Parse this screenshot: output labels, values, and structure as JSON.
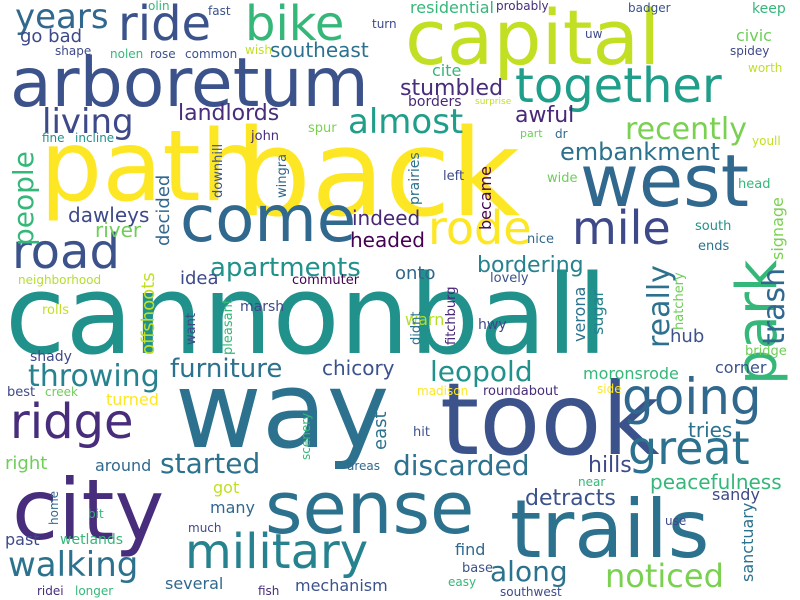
{
  "words": [
    {
      "id": "w0",
      "text": "cannonball",
      "color": "#21918c"
    },
    {
      "id": "w1",
      "text": "path",
      "color": "#fde725"
    },
    {
      "id": "w2",
      "text": "back",
      "color": "#fde725"
    },
    {
      "id": "w3",
      "text": "way",
      "color": "#2c728e"
    },
    {
      "id": "w4",
      "text": "took",
      "color": "#3b528b"
    },
    {
      "id": "w5",
      "text": "capital",
      "color": "#c2df23"
    },
    {
      "id": "w6",
      "text": "city",
      "color": "#472d7b"
    },
    {
      "id": "w7",
      "text": "sense",
      "color": "#2c728e"
    },
    {
      "id": "w8",
      "text": "arboretum",
      "color": "#3b528b"
    },
    {
      "id": "w9",
      "text": "west",
      "color": "#31688e"
    },
    {
      "id": "w10",
      "text": "come",
      "color": "#31688e"
    },
    {
      "id": "w11",
      "text": "trails",
      "color": "#2c728e"
    },
    {
      "id": "w12",
      "text": "park",
      "color": "#35b779"
    },
    {
      "id": "w13",
      "text": "together",
      "color": "#1f9e89"
    },
    {
      "id": "w14",
      "text": "ride",
      "color": "#3b528b"
    },
    {
      "id": "w15",
      "text": "bike",
      "color": "#35b779"
    },
    {
      "id": "w16",
      "text": "military",
      "color": "#26828e"
    },
    {
      "id": "w17",
      "text": "going",
      "color": "#31688e"
    },
    {
      "id": "w18",
      "text": "great",
      "color": "#2c728e"
    },
    {
      "id": "w19",
      "text": "ridge",
      "color": "#472d7b"
    },
    {
      "id": "w20",
      "text": "road",
      "color": "#3b528b"
    },
    {
      "id": "w21",
      "text": "rode",
      "color": "#fde725"
    },
    {
      "id": "w22",
      "text": "mile",
      "color": "#3e4989"
    },
    {
      "id": "w23",
      "text": "walking",
      "color": "#2c728e"
    },
    {
      "id": "w24",
      "text": "noticed",
      "color": "#7ad151"
    },
    {
      "id": "w25",
      "text": "discarded",
      "color": "#2c728e"
    },
    {
      "id": "w26",
      "text": "started",
      "color": "#2c728e"
    },
    {
      "id": "w27",
      "text": "recently",
      "color": "#7ad151"
    },
    {
      "id": "w28",
      "text": "almost",
      "color": "#1f9e89"
    },
    {
      "id": "w29",
      "text": "living",
      "color": "#3e4989"
    },
    {
      "id": "w30",
      "text": "years",
      "color": "#31688e"
    },
    {
      "id": "w31",
      "text": "furniture",
      "color": "#2c728e"
    },
    {
      "id": "w32",
      "text": "throwing",
      "color": "#26828e"
    },
    {
      "id": "w33",
      "text": "apartments",
      "color": "#21918c"
    },
    {
      "id": "w34",
      "text": "leopold",
      "color": "#21918c"
    },
    {
      "id": "w35",
      "text": "embankment",
      "color": "#2c728e"
    },
    {
      "id": "w36",
      "text": "along",
      "color": "#2c728e"
    },
    {
      "id": "w37",
      "text": "trash",
      "color": "#31688e"
    },
    {
      "id": "w38",
      "text": "people",
      "color": "#35b779"
    },
    {
      "id": "w39",
      "text": "really",
      "color": "#2c728e"
    },
    {
      "id": "w40",
      "text": "bordering",
      "color": "#26828e"
    },
    {
      "id": "w41",
      "text": "peacefulness",
      "color": "#35b779"
    },
    {
      "id": "w42",
      "text": "detracts",
      "color": "#3b528b"
    },
    {
      "id": "w43",
      "text": "tries",
      "color": "#2c728e"
    },
    {
      "id": "w44",
      "text": "hills",
      "color": "#3e4989"
    },
    {
      "id": "w45",
      "text": "awful",
      "color": "#482878"
    },
    {
      "id": "w46",
      "text": "stumbled",
      "color": "#472d7b"
    },
    {
      "id": "w47",
      "text": "landlords",
      "color": "#472d7b"
    },
    {
      "id": "w48",
      "text": "southeast",
      "color": "#2c728e"
    },
    {
      "id": "w49",
      "text": "residential",
      "color": "#35b779"
    },
    {
      "id": "w50",
      "text": "go bad",
      "color": "#3e4989"
    },
    {
      "id": "w51",
      "text": "moronsrode",
      "color": "#35b779"
    },
    {
      "id": "w52",
      "text": "chicory",
      "color": "#3b528b"
    },
    {
      "id": "w53",
      "text": "indeed",
      "color": "#482878"
    },
    {
      "id": "w54",
      "text": "headed",
      "color": "#440154"
    },
    {
      "id": "w55",
      "text": "decided",
      "color": "#31688e"
    },
    {
      "id": "w56",
      "text": "dawleys",
      "color": "#3e4989"
    },
    {
      "id": "w57",
      "text": "river",
      "color": "#6ece58"
    },
    {
      "id": "w58",
      "text": "idea",
      "color": "#3e4989"
    },
    {
      "id": "w59",
      "text": "onto",
      "color": "#31688e"
    },
    {
      "id": "w60",
      "text": "became",
      "color": "#440154"
    },
    {
      "id": "w61",
      "text": "offshoots",
      "color": "#c2df23"
    },
    {
      "id": "w62",
      "text": "turned",
      "color": "#fde725"
    },
    {
      "id": "w63",
      "text": "around",
      "color": "#31688e"
    },
    {
      "id": "w64",
      "text": "right",
      "color": "#6ece58"
    },
    {
      "id": "w65",
      "text": "east",
      "color": "#2c728e"
    },
    {
      "id": "w66",
      "text": "several",
      "color": "#31688e"
    },
    {
      "id": "w67",
      "text": "mechanism",
      "color": "#3b528b"
    },
    {
      "id": "w68",
      "text": "past",
      "color": "#3e4989"
    },
    {
      "id": "w69",
      "text": "wetlands",
      "color": "#35b779"
    },
    {
      "id": "w70",
      "text": "many",
      "color": "#31688e"
    },
    {
      "id": "w71",
      "text": "got",
      "color": "#c2df23"
    },
    {
      "id": "w72",
      "text": "find",
      "color": "#31688e"
    },
    {
      "id": "w73",
      "text": "sandy",
      "color": "#3e4989"
    },
    {
      "id": "w74",
      "text": "corner",
      "color": "#3b528b"
    },
    {
      "id": "w75",
      "text": "hub",
      "color": "#3b528b"
    },
    {
      "id": "w76",
      "text": "sugar",
      "color": "#26828e"
    },
    {
      "id": "w77",
      "text": "verona",
      "color": "#2c728e"
    },
    {
      "id": "w78",
      "text": "sanctuary",
      "color": "#2c728e"
    },
    {
      "id": "w79",
      "text": "signage",
      "color": "#7ad151"
    },
    {
      "id": "w80",
      "text": "cite",
      "color": "#35b779"
    },
    {
      "id": "w81",
      "text": "borders",
      "color": "#482878"
    },
    {
      "id": "w82",
      "text": "warn",
      "color": "#b5de2b"
    },
    {
      "id": "w83",
      "text": "marsh",
      "color": "#3e4989"
    },
    {
      "id": "w84",
      "text": "shady",
      "color": "#3e4989"
    },
    {
      "id": "w85",
      "text": "rolls",
      "color": "#c2df23"
    },
    {
      "id": "w86",
      "text": "commuter",
      "color": "#440154"
    },
    {
      "id": "w87",
      "text": "neighborhood",
      "color": "#b5de2b"
    },
    {
      "id": "w88",
      "text": "pleasant",
      "color": "#35b779"
    },
    {
      "id": "w89",
      "text": "want",
      "color": "#3e4989"
    },
    {
      "id": "w90",
      "text": "downhill",
      "color": "#3b528b"
    },
    {
      "id": "w91",
      "text": "wingra",
      "color": "#31688e"
    },
    {
      "id": "w92",
      "text": "john",
      "color": "#472d7b"
    },
    {
      "id": "w93",
      "text": "spur",
      "color": "#7ad151"
    },
    {
      "id": "w94",
      "text": "fine",
      "color": "#21918c"
    },
    {
      "id": "w95",
      "text": "incline",
      "color": "#21918c"
    },
    {
      "id": "w96",
      "text": "prairies",
      "color": "#2c728e"
    },
    {
      "id": "w97",
      "text": "left",
      "color": "#3e4989"
    },
    {
      "id": "w98",
      "text": "wide",
      "color": "#6ece58"
    },
    {
      "id": "w99",
      "text": "head",
      "color": "#35b779"
    },
    {
      "id": "w100",
      "text": "south",
      "color": "#21918c"
    },
    {
      "id": "w101",
      "text": "ends",
      "color": "#2c728e"
    },
    {
      "id": "w102",
      "text": "hatchery",
      "color": "#6ece58"
    },
    {
      "id": "w103",
      "text": "bridge",
      "color": "#6ece58"
    },
    {
      "id": "w104",
      "text": "nice",
      "color": "#31688e"
    },
    {
      "id": "w105",
      "text": "lovely",
      "color": "#3b528b"
    },
    {
      "id": "w106",
      "text": "hwy",
      "color": "#3e4989"
    },
    {
      "id": "w107",
      "text": "didnt",
      "color": "#2c728e"
    },
    {
      "id": "w108",
      "text": "fitchburg",
      "color": "#482878"
    },
    {
      "id": "w109",
      "text": "madison",
      "color": "#fde725"
    },
    {
      "id": "w110",
      "text": "roundabout",
      "color": "#472d7b"
    },
    {
      "id": "w111",
      "text": "side",
      "color": "#fde725"
    },
    {
      "id": "w112",
      "text": "best",
      "color": "#3e4989"
    },
    {
      "id": "w113",
      "text": "creek",
      "color": "#6ece58"
    },
    {
      "id": "w114",
      "text": "scenery",
      "color": "#35b779"
    },
    {
      "id": "w115",
      "text": "areas",
      "color": "#31688e"
    },
    {
      "id": "w116",
      "text": "hit",
      "color": "#3b528b"
    },
    {
      "id": "w117",
      "text": "near",
      "color": "#35b779"
    },
    {
      "id": "w118",
      "text": "base",
      "color": "#3b528b"
    },
    {
      "id": "w119",
      "text": "easy",
      "color": "#35b779"
    },
    {
      "id": "w120",
      "text": "southwest",
      "color": "#3e4989"
    },
    {
      "id": "w121",
      "text": "use",
      "color": "#3e4989"
    },
    {
      "id": "w122",
      "text": "fish",
      "color": "#472d7b"
    },
    {
      "id": "w123",
      "text": "longer",
      "color": "#35b779"
    },
    {
      "id": "w124",
      "text": "ridei",
      "color": "#472d7b"
    },
    {
      "id": "w125",
      "text": "much",
      "color": "#3e4989"
    },
    {
      "id": "w126",
      "text": "bit",
      "color": "#35b779"
    },
    {
      "id": "w127",
      "text": "home",
      "color": "#31688e"
    },
    {
      "id": "w128",
      "text": "olin",
      "color": "#35b779"
    },
    {
      "id": "w129",
      "text": "fast",
      "color": "#3b528b"
    },
    {
      "id": "w130",
      "text": "turn",
      "color": "#3e4989"
    },
    {
      "id": "w131",
      "text": "probably",
      "color": "#472d7b"
    },
    {
      "id": "w132",
      "text": "badger",
      "color": "#3b528b"
    },
    {
      "id": "w133",
      "text": "keep",
      "color": "#35b779"
    },
    {
      "id": "w134",
      "text": "civic",
      "color": "#6ece58"
    },
    {
      "id": "w135",
      "text": "uw",
      "color": "#3e4989"
    },
    {
      "id": "w136",
      "text": "spidey",
      "color": "#3e4989"
    },
    {
      "id": "w137",
      "text": "worth",
      "color": "#c2df23"
    },
    {
      "id": "w138",
      "text": "shape",
      "color": "#3e4989"
    },
    {
      "id": "w139",
      "text": "nolen",
      "color": "#35b779"
    },
    {
      "id": "w140",
      "text": "rose",
      "color": "#3b528b"
    },
    {
      "id": "w141",
      "text": "common",
      "color": "#3b528b"
    },
    {
      "id": "w142",
      "text": "wish",
      "color": "#c2df23"
    },
    {
      "id": "w143",
      "text": "surprise",
      "color": "#c2df23"
    },
    {
      "id": "w144",
      "text": "part",
      "color": "#6ece58"
    },
    {
      "id": "w145",
      "text": "dr",
      "color": "#31688e"
    },
    {
      "id": "w146",
      "text": "youll",
      "color": "#c2df23"
    }
  ]
}
